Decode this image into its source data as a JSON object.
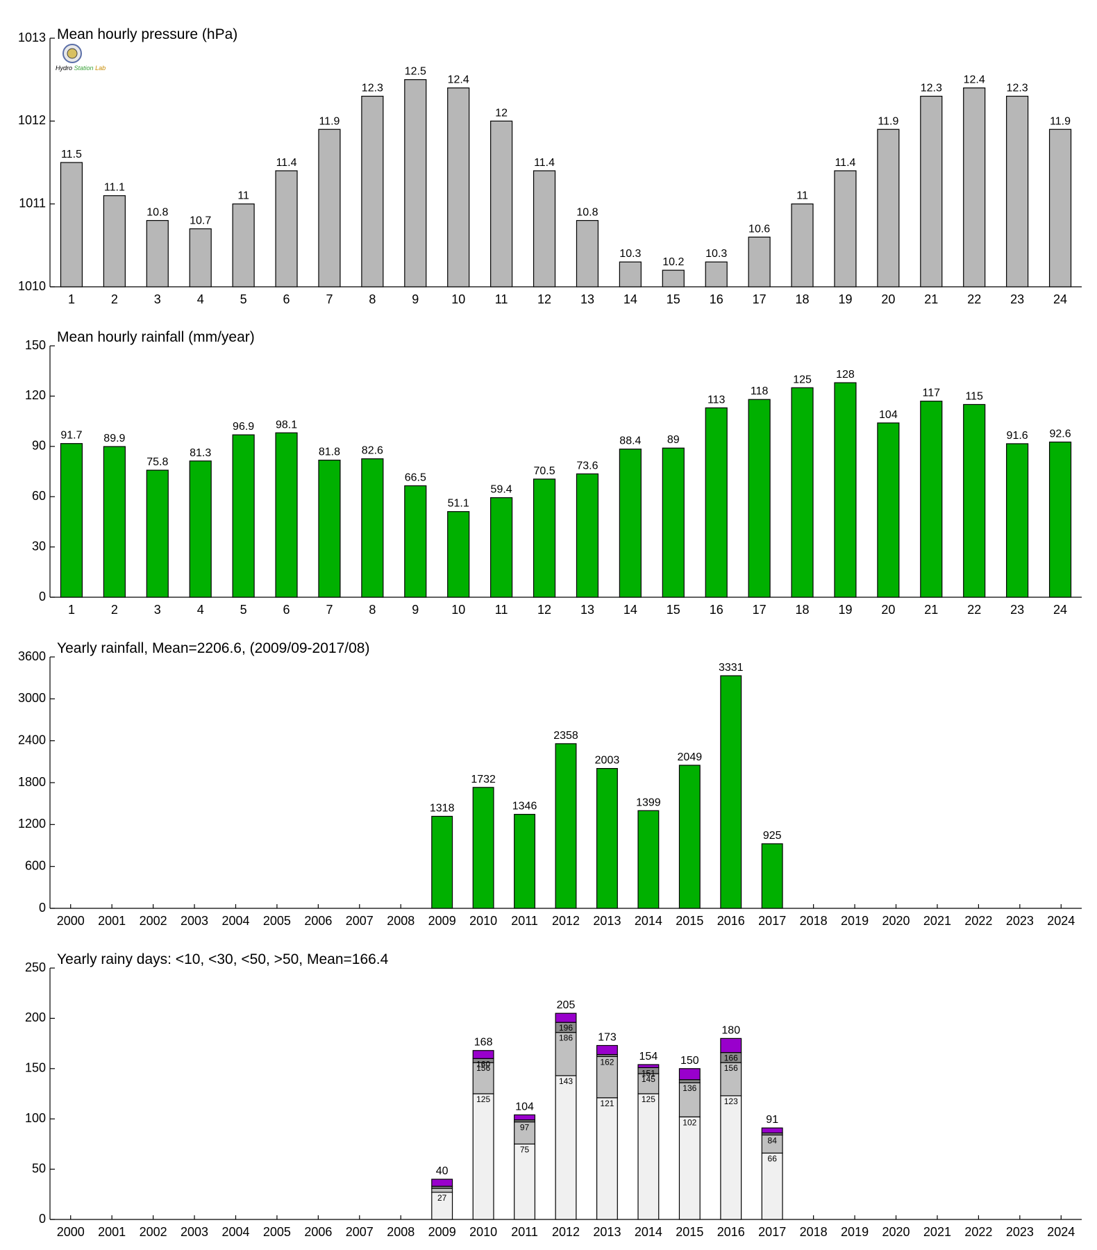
{
  "logo_text": "Hydro Station Lab",
  "chart_data": [
    {
      "id": "pressure",
      "type": "bar",
      "title": "Mean hourly pressure (hPa)",
      "categories": [
        "1",
        "2",
        "3",
        "4",
        "5",
        "6",
        "7",
        "8",
        "9",
        "10",
        "11",
        "12",
        "13",
        "14",
        "15",
        "16",
        "17",
        "18",
        "19",
        "20",
        "21",
        "22",
        "23",
        "24"
      ],
      "values": [
        1011.5,
        1011.1,
        1010.8,
        1010.7,
        1011.0,
        1011.4,
        1011.9,
        1012.3,
        1012.5,
        1012.4,
        1012.0,
        1011.4,
        1010.8,
        1010.3,
        1010.2,
        1010.3,
        1010.6,
        1011.0,
        1011.4,
        1011.9,
        1012.3,
        1012.4,
        1012.3,
        1011.9
      ],
      "labels": [
        "11.5",
        "11.1",
        "10.8",
        "10.7",
        "11",
        "11.4",
        "11.9",
        "12.3",
        "12.5",
        "12.4",
        "12",
        "11.4",
        "10.8",
        "10.3",
        "10.2",
        "10.3",
        "10.6",
        "11",
        "11.4",
        "11.9",
        "12.3",
        "12.4",
        "12.3",
        "11.9"
      ],
      "ylim": [
        1010,
        1013
      ],
      "yticks": [
        1010,
        1011,
        1012,
        1013
      ],
      "ytick_labels": [
        "1010",
        "1011",
        "1012",
        "1013"
      ],
      "color": "#b7b7b7"
    },
    {
      "id": "rainfall_hourly",
      "type": "bar",
      "title": "Mean hourly rainfall (mm/year)",
      "categories": [
        "1",
        "2",
        "3",
        "4",
        "5",
        "6",
        "7",
        "8",
        "9",
        "10",
        "11",
        "12",
        "13",
        "14",
        "15",
        "16",
        "17",
        "18",
        "19",
        "20",
        "21",
        "22",
        "23",
        "24"
      ],
      "values": [
        91.7,
        89.9,
        75.8,
        81.3,
        96.9,
        98.1,
        81.8,
        82.6,
        66.5,
        51.1,
        59.4,
        70.5,
        73.6,
        88.4,
        89,
        113,
        118,
        125,
        128,
        104,
        117,
        115,
        91.6,
        92.6
      ],
      "labels": [
        "91.7",
        "89.9",
        "75.8",
        "81.3",
        "96.9",
        "98.1",
        "81.8",
        "82.6",
        "66.5",
        "51.1",
        "59.4",
        "70.5",
        "73.6",
        "88.4",
        "89",
        "113",
        "118",
        "125",
        "128",
        "104",
        "117",
        "115",
        "91.6",
        "92.6"
      ],
      "ylim": [
        0,
        150
      ],
      "yticks": [
        0,
        30,
        60,
        90,
        120,
        150
      ],
      "ytick_labels": [
        "0",
        "30",
        "60",
        "90",
        "120",
        "150"
      ],
      "color": "#00b000"
    },
    {
      "id": "rainfall_yearly",
      "type": "bar",
      "title": "Yearly rainfall, Mean=2206.6, (2009/09-2017/08)",
      "categories": [
        "2000",
        "2001",
        "2002",
        "2003",
        "2004",
        "2005",
        "2006",
        "2007",
        "2008",
        "2009",
        "2010",
        "2011",
        "2012",
        "2013",
        "2014",
        "2015",
        "2016",
        "2017",
        "2018",
        "2019",
        "2020",
        "2021",
        "2022",
        "2023",
        "2024"
      ],
      "values": [
        null,
        null,
        null,
        null,
        null,
        null,
        null,
        null,
        null,
        1318,
        1732,
        1346,
        2358,
        2003,
        1399,
        2049,
        3331,
        925,
        null,
        null,
        null,
        null,
        null,
        null,
        null
      ],
      "labels": [
        "",
        "",
        "",
        "",
        "",
        "",
        "",
        "",
        "",
        "1318",
        "1732",
        "1346",
        "2358",
        "2003",
        "1399",
        "2049",
        "3331",
        "925",
        "",
        "",
        "",
        "",
        "",
        "",
        ""
      ],
      "ylim": [
        0,
        3600
      ],
      "yticks": [
        0,
        600,
        1200,
        1800,
        2400,
        3000,
        3600
      ],
      "ytick_labels": [
        "0",
        "600",
        "1200",
        "1800",
        "2400",
        "3000",
        "3600"
      ],
      "color": "#00b000"
    },
    {
      "id": "rainy_days",
      "type": "bar",
      "stacked": true,
      "title": "Yearly rainy days: <10, <30, <50, >50, Mean=166.4",
      "categories": [
        "2000",
        "2001",
        "2002",
        "2003",
        "2004",
        "2005",
        "2006",
        "2007",
        "2008",
        "2009",
        "2010",
        "2011",
        "2012",
        "2013",
        "2014",
        "2015",
        "2016",
        "2017",
        "2018",
        "2019",
        "2020",
        "2021",
        "2022",
        "2023",
        "2024"
      ],
      "cumulative": [
        null,
        null,
        null,
        null,
        null,
        null,
        null,
        null,
        null,
        [
          27,
          31,
          33,
          40
        ],
        [
          125,
          156,
          160,
          168
        ],
        [
          75,
          97,
          99,
          104
        ],
        [
          143,
          186,
          196,
          205
        ],
        [
          121,
          162,
          164,
          173
        ],
        [
          125,
          145,
          151,
          154
        ],
        [
          102,
          136,
          139,
          150
        ],
        [
          123,
          156,
          166,
          180
        ],
        [
          66,
          84,
          86,
          91
        ],
        null,
        null,
        null,
        null,
        null,
        null,
        null
      ],
      "segment_labels": [
        null,
        null,
        null,
        null,
        null,
        null,
        null,
        null,
        null,
        [
          "27",
          "",
          "",
          ""
        ],
        [
          "125",
          "156",
          "160",
          ""
        ],
        [
          "75",
          "97",
          "",
          ""
        ],
        [
          "143",
          "186",
          "196",
          ""
        ],
        [
          "121",
          "162",
          "",
          ""
        ],
        [
          "125",
          "145",
          "151",
          ""
        ],
        [
          "102",
          "136",
          "",
          ""
        ],
        [
          "123",
          "156",
          "166",
          ""
        ],
        [
          "66",
          "84",
          "",
          ""
        ],
        null,
        null,
        null,
        null,
        null,
        null,
        null
      ],
      "totals": [
        "",
        "",
        "",
        "",
        "",
        "",
        "",
        "",
        "",
        "40",
        "168",
        "104",
        "205",
        "173",
        "154",
        "150",
        "180",
        "91",
        "",
        "",
        "",
        "",
        "",
        "",
        ""
      ],
      "ylim": [
        0,
        250
      ],
      "yticks": [
        0,
        50,
        100,
        150,
        200,
        250
      ],
      "ytick_labels": [
        "0",
        "50",
        "100",
        "150",
        "200",
        "250"
      ],
      "segment_colors": [
        "#f0f0f0",
        "#c0c0c0",
        "#8c8c8c",
        "#9900cc"
      ]
    }
  ]
}
